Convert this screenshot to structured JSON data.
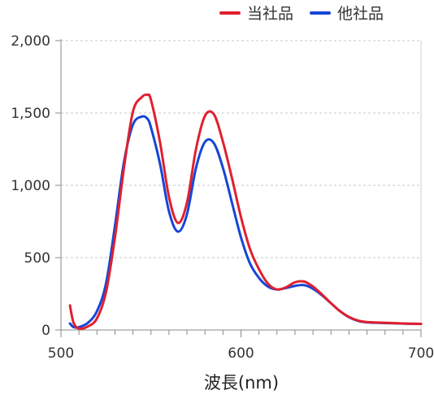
{
  "chart_data": {
    "type": "line",
    "title": "",
    "xlabel": "波長(nm)",
    "ylabel": "",
    "xlim": [
      500,
      700
    ],
    "ylim": [
      0,
      2000
    ],
    "xticks": [
      500,
      600,
      700
    ],
    "xtick_labels": [
      "500",
      "600",
      "700"
    ],
    "yticks": [
      0,
      500,
      1000,
      1500,
      2000
    ],
    "ytick_labels": [
      "0",
      "500",
      "1,000",
      "1,500",
      "2,000"
    ],
    "grid": true,
    "legend_position": "top-right",
    "series": [
      {
        "name": "当社品",
        "color": "#e0202e",
        "x": [
          505,
          507,
          510,
          515,
          520,
          525,
          530,
          535,
          540,
          545,
          548,
          550,
          555,
          560,
          565,
          570,
          575,
          580,
          585,
          590,
          595,
          600,
          605,
          610,
          615,
          620,
          625,
          630,
          635,
          640,
          645,
          650,
          655,
          660,
          665,
          670,
          680,
          690,
          700
        ],
        "y": [
          170,
          50,
          10,
          25,
          80,
          260,
          640,
          1120,
          1510,
          1610,
          1625,
          1590,
          1300,
          920,
          740,
          880,
          1250,
          1480,
          1490,
          1300,
          1050,
          780,
          560,
          420,
          320,
          280,
          295,
          330,
          335,
          300,
          245,
          185,
          130,
          90,
          65,
          55,
          50,
          45,
          42
        ]
      },
      {
        "name": "他社品",
        "color": "#1546d8",
        "x": [
          505,
          507,
          510,
          515,
          520,
          525,
          530,
          535,
          540,
          545,
          548,
          550,
          555,
          560,
          565,
          570,
          575,
          580,
          585,
          590,
          595,
          600,
          605,
          610,
          615,
          620,
          625,
          630,
          635,
          640,
          645,
          650,
          655,
          660,
          665,
          670,
          680,
          690,
          700
        ],
        "y": [
          45,
          20,
          20,
          50,
          130,
          320,
          720,
          1160,
          1420,
          1475,
          1460,
          1400,
          1150,
          820,
          680,
          800,
          1120,
          1300,
          1290,
          1120,
          880,
          640,
          460,
          360,
          300,
          280,
          290,
          305,
          310,
          285,
          240,
          185,
          130,
          88,
          63,
          53,
          48,
          44,
          42
        ]
      }
    ]
  }
}
